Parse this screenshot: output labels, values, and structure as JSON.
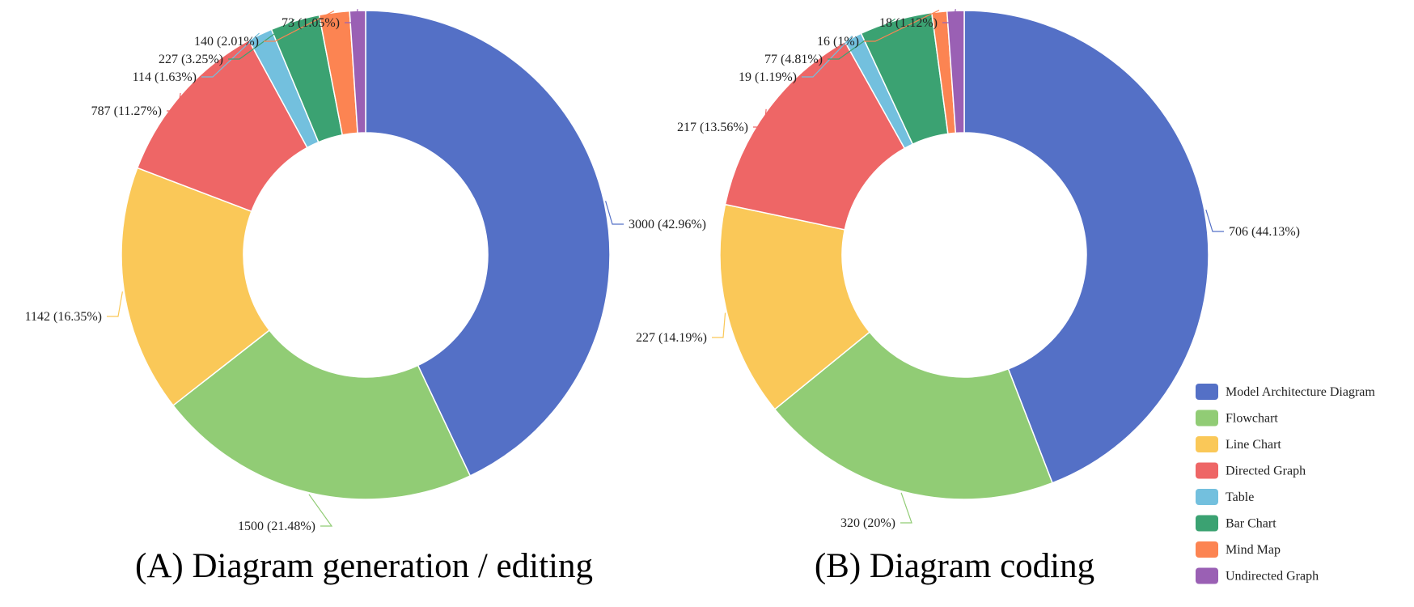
{
  "chart_data": [
    {
      "type": "pie",
      "variant": "donut",
      "title": "(A) Diagram generation / editing",
      "categories": [
        "Model Architecture Diagram",
        "Flowchart",
        "Line Chart",
        "Directed Graph",
        "Table",
        "Bar Chart",
        "Mind Map",
        "Undirected Graph"
      ],
      "values": [
        3000,
        1500,
        1142,
        787,
        114,
        227,
        140,
        73
      ],
      "percent": [
        42.96,
        21.48,
        16.35,
        11.27,
        1.63,
        3.25,
        2.01,
        1.05
      ],
      "labels": [
        "3000 (42.96%)",
        "1500 (21.48%)",
        "1142 (16.35%)",
        "787 (11.27%)",
        "114 (1.63%)",
        "227 (3.25%)",
        "140 (2.01%)",
        "73 (1.05%)"
      ]
    },
    {
      "type": "pie",
      "variant": "donut",
      "title": "(B) Diagram coding",
      "categories": [
        "Model Architecture Diagram",
        "Flowchart",
        "Line Chart",
        "Directed Graph",
        "Table",
        "Bar Chart",
        "Mind Map",
        "Undirected Graph"
      ],
      "values": [
        706,
        320,
        227,
        217,
        19,
        77,
        16,
        18
      ],
      "percent": [
        44.13,
        20,
        14.19,
        13.56,
        1.19,
        4.81,
        1,
        1.12
      ],
      "labels": [
        "706 (44.13%)",
        "320 (20%)",
        "227 (14.19%)",
        "217 (13.56%)",
        "19 (1.19%)",
        "77 (4.81%)",
        "16 (1%)",
        "18 (1.12%)"
      ]
    }
  ],
  "legend": {
    "placement": "bottom-right",
    "items": [
      {
        "label": "Model Architecture Diagram",
        "color": "#5470c6"
      },
      {
        "label": "Flowchart",
        "color": "#91cc75"
      },
      {
        "label": "Line Chart",
        "color": "#fac858"
      },
      {
        "label": "Directed Graph",
        "color": "#ee6666"
      },
      {
        "label": "Table",
        "color": "#73c0de"
      },
      {
        "label": "Bar Chart",
        "color": "#3ba272"
      },
      {
        "label": "Mind Map",
        "color": "#fc8452"
      },
      {
        "label": "Undirected Graph",
        "color": "#9a60b4"
      }
    ]
  }
}
